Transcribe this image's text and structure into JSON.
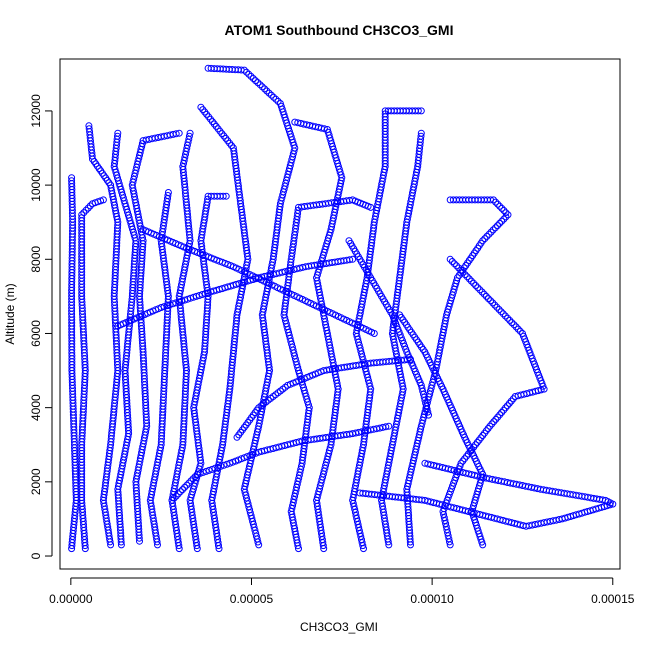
{
  "chart_data": {
    "type": "scatter",
    "title": "ATOM1 Southbound CH3CO3_GMI",
    "xlabel": "CH3CO3_GMI",
    "ylabel": "Altitude (m)",
    "xlim": [
      -3e-06,
      0.000152
    ],
    "ylim": [
      -350,
      13400
    ],
    "xticks": [
      0.0,
      5e-05,
      0.0001,
      0.00015
    ],
    "xtick_labels": [
      "0.00000",
      "0.00005",
      "0.00010",
      "0.00015"
    ],
    "yticks": [
      0,
      2000,
      4000,
      6000,
      8000,
      10000,
      12000
    ],
    "ytick_labels": [
      "0",
      "2000",
      "4000",
      "6000",
      "8000",
      "10000",
      "12000"
    ],
    "grid": false,
    "point_style": "open-circle",
    "series_color": "#0000ff",
    "profiles": [
      [
        [
          2e-07,
          200
        ],
        [
          1.5e-06,
          1500
        ],
        [
          1e-06,
          3000
        ],
        [
          3e-07,
          5000
        ],
        [
          2e-07,
          7000
        ],
        [
          5e-07,
          9000
        ],
        [
          2e-07,
          10200
        ]
      ],
      [
        [
          4e-06,
          200
        ],
        [
          3e-06,
          1500
        ],
        [
          3e-06,
          3000
        ],
        [
          4e-06,
          5000
        ],
        [
          3e-06,
          7000
        ],
        [
          3e-06,
          9200
        ],
        [
          6e-06,
          9500
        ],
        [
          9e-06,
          9600
        ]
      ],
      [
        [
          1.1e-05,
          300
        ],
        [
          9e-06,
          1500
        ],
        [
          1.1e-05,
          3000
        ],
        [
          1.3e-05,
          5000
        ],
        [
          1.2e-05,
          7000
        ],
        [
          1.3e-05,
          9000
        ],
        [
          1.1e-05,
          10000
        ],
        [
          6e-06,
          10700
        ],
        [
          5e-06,
          11600
        ]
      ],
      [
        [
          1.4e-05,
          300
        ],
        [
          1.3e-05,
          1800
        ],
        [
          1.6e-05,
          3300
        ],
        [
          1.5e-05,
          5000
        ],
        [
          1.7e-05,
          7000
        ],
        [
          1.8e-05,
          8500
        ],
        [
          1.5e-05,
          9500
        ],
        [
          1.2e-05,
          10500
        ],
        [
          1.3e-05,
          11400
        ]
      ],
      [
        [
          1.9e-05,
          400
        ],
        [
          1.8e-05,
          2000
        ],
        [
          2.1e-05,
          3500
        ],
        [
          2e-05,
          5500
        ],
        [
          1.9e-05,
          7000
        ],
        [
          2e-05,
          8500
        ],
        [
          1.7e-05,
          10000
        ],
        [
          2e-05,
          11200
        ],
        [
          3e-05,
          11400
        ]
      ],
      [
        [
          2.4e-05,
          300
        ],
        [
          2.2e-05,
          1500
        ],
        [
          2.5e-05,
          3000
        ],
        [
          2.6e-05,
          5000
        ],
        [
          2.7e-05,
          7000
        ],
        [
          2.5e-05,
          8500
        ],
        [
          2.7e-05,
          9800
        ]
      ],
      [
        [
          3e-05,
          200
        ],
        [
          2.8e-05,
          1500
        ],
        [
          3.1e-05,
          3000
        ],
        [
          3.2e-05,
          5000
        ],
        [
          3e-05,
          7000
        ],
        [
          3.3e-05,
          8500
        ],
        [
          3.1e-05,
          10500
        ],
        [
          3.3e-05,
          11400
        ]
      ],
      [
        [
          3.5e-05,
          200
        ],
        [
          3.3e-05,
          1500
        ],
        [
          3.6e-05,
          2500
        ],
        [
          3.4e-05,
          4000
        ],
        [
          3.7e-05,
          5500
        ],
        [
          3.8e-05,
          7000
        ],
        [
          3.6e-05,
          8500
        ],
        [
          3.8e-05,
          9700
        ],
        [
          4.3e-05,
          9700
        ]
      ],
      [
        [
          4.1e-05,
          200
        ],
        [
          3.9e-05,
          1500
        ],
        [
          4.2e-05,
          3000
        ],
        [
          4.4e-05,
          4500
        ],
        [
          4.6e-05,
          6500
        ],
        [
          4.9e-05,
          8000
        ],
        [
          4.7e-05,
          9500
        ],
        [
          4.5e-05,
          11000
        ],
        [
          3.6e-05,
          12100
        ]
      ],
      [
        [
          5.2e-05,
          300
        ],
        [
          4.8e-05,
          1800
        ],
        [
          5.2e-05,
          3500
        ],
        [
          5.5e-05,
          5000
        ],
        [
          5.3e-05,
          6500
        ],
        [
          5.6e-05,
          8000
        ],
        [
          5.8e-05,
          9500
        ],
        [
          6.2e-05,
          11000
        ],
        [
          5.8e-05,
          12200
        ],
        [
          4.8e-05,
          13100
        ],
        [
          3.8e-05,
          13150
        ]
      ],
      [
        [
          6.3e-05,
          200
        ],
        [
          6.1e-05,
          1200
        ],
        [
          6.4e-05,
          2500
        ],
        [
          6.6e-05,
          4000
        ],
        [
          6.3e-05,
          5000
        ],
        [
          5.9e-05,
          6500
        ],
        [
          6.1e-05,
          8000
        ],
        [
          6.3e-05,
          9400
        ],
        [
          7.8e-05,
          9600
        ],
        [
          8.3e-05,
          9400
        ]
      ],
      [
        [
          7e-05,
          200
        ],
        [
          6.8e-05,
          1500
        ],
        [
          7.2e-05,
          3000
        ],
        [
          7.4e-05,
          4500
        ],
        [
          7.1e-05,
          6000
        ],
        [
          6.8e-05,
          7500
        ],
        [
          7.2e-05,
          8800
        ],
        [
          7.5e-05,
          10200
        ],
        [
          7.1e-05,
          11500
        ],
        [
          6.2e-05,
          11700
        ]
      ],
      [
        [
          8.1e-05,
          200
        ],
        [
          7.8e-05,
          1500
        ],
        [
          8.1e-05,
          3000
        ],
        [
          8.3e-05,
          4500
        ],
        [
          7.9e-05,
          6000
        ],
        [
          8.2e-05,
          7500
        ],
        [
          8.4e-05,
          9000
        ],
        [
          8.7e-05,
          10500
        ],
        [
          8.7e-05,
          12000
        ],
        [
          9.7e-05,
          12000
        ]
      ],
      [
        [
          8.8e-05,
          300
        ],
        [
          8.6e-05,
          1500
        ],
        [
          8.9e-05,
          3000
        ],
        [
          9.2e-05,
          4500
        ],
        [
          8.9e-05,
          6000
        ],
        [
          9.1e-05,
          7500
        ],
        [
          9.3e-05,
          9000
        ],
        [
          9.6e-05,
          10500
        ],
        [
          9.7e-05,
          11400
        ]
      ],
      [
        [
          9.4e-05,
          300
        ],
        [
          9.3e-05,
          1800
        ],
        [
          9.7e-05,
          3500
        ],
        [
          0.000101,
          5000
        ],
        [
          0.000104,
          6500
        ],
        [
          0.000107,
          7500
        ],
        [
          0.000114,
          8500
        ],
        [
          0.000121,
          9200
        ],
        [
          0.000117,
          9600
        ],
        [
          0.000105,
          9600
        ]
      ],
      [
        [
          0.000105,
          300
        ],
        [
          0.000103,
          1200
        ],
        [
          0.000108,
          2500
        ],
        [
          0.000116,
          3500
        ],
        [
          0.000123,
          4300
        ],
        [
          0.000131,
          4500
        ],
        [
          0.000125,
          6000
        ],
        [
          0.000115,
          7000
        ],
        [
          0.000105,
          8000
        ]
      ],
      [
        [
          0.000114,
          300
        ],
        [
          0.000111,
          1200
        ],
        [
          0.000114,
          2200
        ],
        [
          0.000109,
          3200
        ],
        [
          0.000103,
          4500
        ],
        [
          9.8e-05,
          5500
        ],
        [
          9.1e-05,
          6500
        ]
      ],
      [
        [
          9.8e-05,
          2500
        ],
        [
          0.000115,
          2100
        ],
        [
          0.00013,
          1800
        ],
        [
          0.000148,
          1500
        ],
        [
          0.00015,
          1400
        ],
        [
          0.000143,
          1200
        ],
        [
          0.000136,
          1000
        ],
        [
          0.000126,
          800
        ],
        [
          9.8e-05,
          1500
        ],
        [
          8e-05,
          1700
        ]
      ],
      [
        [
          9.9e-05,
          3800
        ],
        [
          9.7e-05,
          4600
        ],
        [
          9.3e-05,
          5500
        ],
        [
          8.9e-05,
          6500
        ],
        [
          8.3e-05,
          7500
        ],
        [
          7.7e-05,
          8500
        ]
      ],
      [
        [
          2.8e-05,
          1500
        ],
        [
          3.5e-05,
          2200
        ],
        [
          4.4e-05,
          2500
        ],
        [
          5.2e-05,
          2800
        ],
        [
          6.4e-05,
          3100
        ],
        [
          7.8e-05,
          3300
        ],
        [
          8.8e-05,
          3500
        ]
      ],
      [
        [
          1.3e-05,
          6200
        ],
        [
          2.5e-05,
          6700
        ],
        [
          3.8e-05,
          7100
        ],
        [
          5.2e-05,
          7500
        ],
        [
          6.5e-05,
          7800
        ],
        [
          7.8e-05,
          8000
        ]
      ],
      [
        [
          4.6e-05,
          3200
        ],
        [
          5.2e-05,
          4000
        ],
        [
          6e-05,
          4600
        ],
        [
          7e-05,
          5000
        ],
        [
          8.3e-05,
          5200
        ],
        [
          9.4e-05,
          5300
        ]
      ],
      [
        [
          2e-05,
          8800
        ],
        [
          3.2e-05,
          8300
        ],
        [
          4.5e-05,
          7800
        ],
        [
          5.8e-05,
          7200
        ],
        [
          7.1e-05,
          6600
        ],
        [
          8.4e-05,
          6000
        ]
      ]
    ]
  }
}
